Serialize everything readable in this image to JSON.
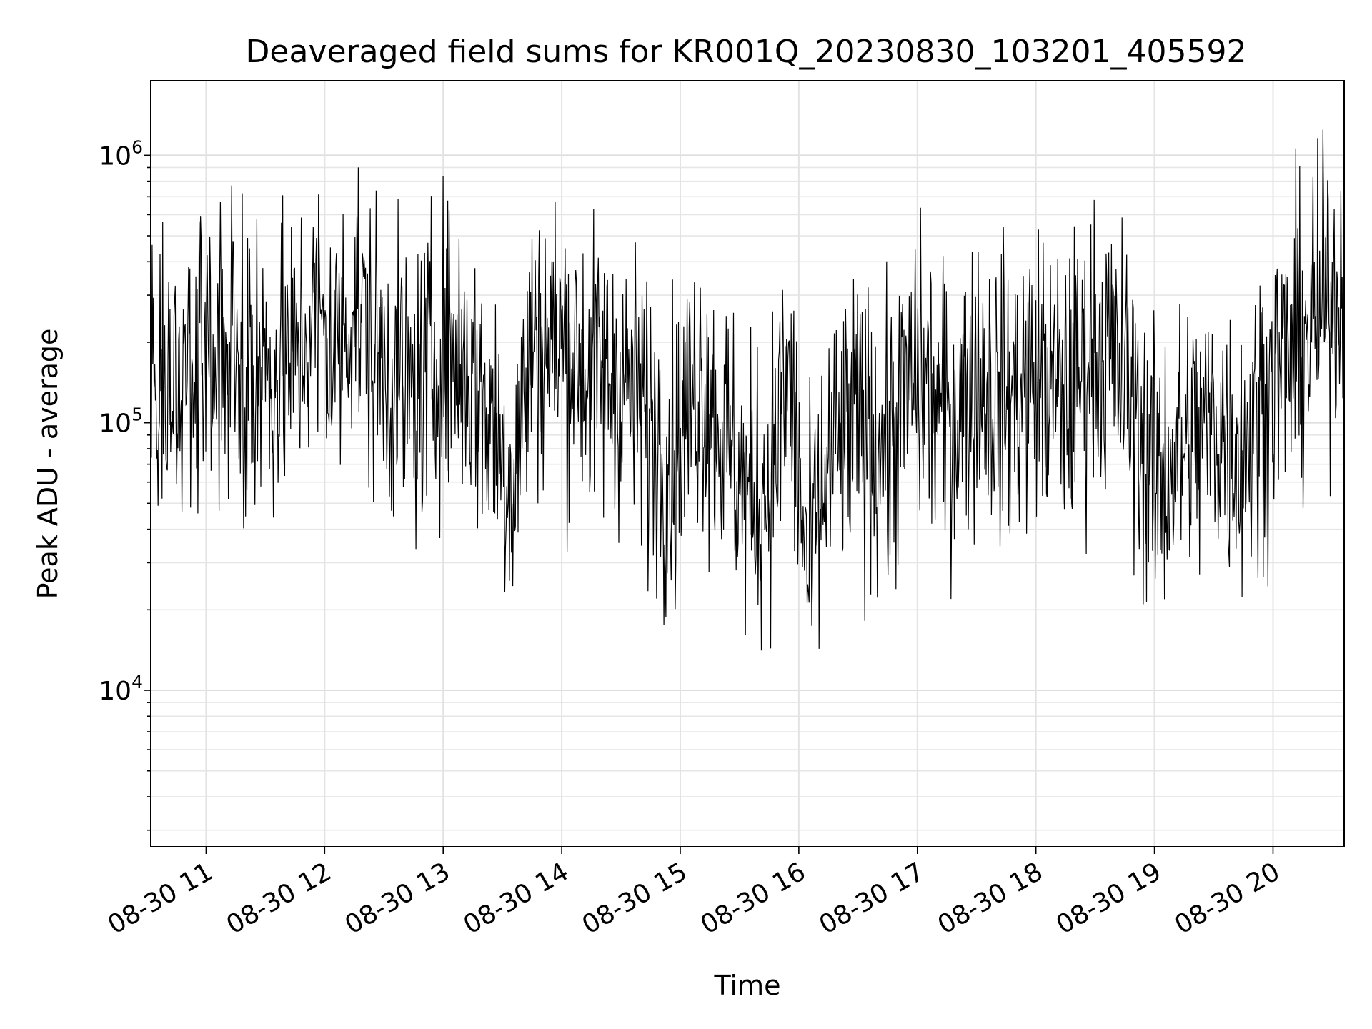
{
  "chart_data": {
    "type": "line",
    "title": "Deaveraged field sums for KR001Q_20230830_103201_405592",
    "xlabel": "Time",
    "ylabel": "Peak ADU - average",
    "yscale": "log",
    "ylim": [
      2600,
      1900000
    ],
    "xlim": [
      "2023-08-30T10:32",
      "2023-08-30T20:36"
    ],
    "grid": true,
    "line_color": "#000000",
    "x_ticks": [
      {
        "time": "2023-08-30T11:00",
        "label": "08-30 11"
      },
      {
        "time": "2023-08-30T12:00",
        "label": "08-30 12"
      },
      {
        "time": "2023-08-30T13:00",
        "label": "08-30 13"
      },
      {
        "time": "2023-08-30T14:00",
        "label": "08-30 14"
      },
      {
        "time": "2023-08-30T15:00",
        "label": "08-30 15"
      },
      {
        "time": "2023-08-30T16:00",
        "label": "08-30 16"
      },
      {
        "time": "2023-08-30T17:00",
        "label": "08-30 17"
      },
      {
        "time": "2023-08-30T18:00",
        "label": "08-30 18"
      },
      {
        "time": "2023-08-30T19:00",
        "label": "08-30 19"
      },
      {
        "time": "2023-08-30T20:00",
        "label": "08-30 20"
      }
    ],
    "y_ticks": [
      {
        "value": 10000,
        "base": "10",
        "exp": "4"
      },
      {
        "value": 100000,
        "base": "10",
        "exp": "5"
      },
      {
        "value": 1000000,
        "base": "10",
        "exp": "6"
      }
    ],
    "series": [
      {
        "x": [
          "2023-08-30T10:32",
          "2023-08-30T10:40",
          "2023-08-30T10:50",
          "2023-08-30T11:00",
          "2023-08-30T11:15",
          "2023-08-30T11:30",
          "2023-08-30T11:45",
          "2023-08-30T11:55",
          "2023-08-30T12:05",
          "2023-08-30T12:15",
          "2023-08-30T12:25",
          "2023-08-30T12:35",
          "2023-08-30T12:45",
          "2023-08-30T13:00",
          "2023-08-30T13:15",
          "2023-08-30T13:25",
          "2023-08-30T13:35",
          "2023-08-30T13:45",
          "2023-08-30T14:00",
          "2023-08-30T14:15",
          "2023-08-30T14:30",
          "2023-08-30T14:45",
          "2023-08-30T14:55",
          "2023-08-30T15:10",
          "2023-08-30T15:25",
          "2023-08-30T15:35",
          "2023-08-30T15:45",
          "2023-08-30T15:55",
          "2023-08-30T16:05",
          "2023-08-30T16:15",
          "2023-08-30T16:30",
          "2023-08-30T16:45",
          "2023-08-30T17:00",
          "2023-08-30T17:15",
          "2023-08-30T17:30",
          "2023-08-30T17:45",
          "2023-08-30T18:00",
          "2023-08-30T18:15",
          "2023-08-30T18:30",
          "2023-08-30T18:45",
          "2023-08-30T19:00",
          "2023-08-30T19:15",
          "2023-08-30T19:30",
          "2023-08-30T19:45",
          "2023-08-30T20:00",
          "2023-08-30T20:15",
          "2023-08-30T20:30",
          "2023-08-30T20:36"
        ],
        "y": [
          150000,
          120000,
          140000,
          200000,
          180000,
          150000,
          170000,
          250000,
          180000,
          300000,
          180000,
          150000,
          120000,
          200000,
          150000,
          100000,
          60000,
          200000,
          200000,
          150000,
          150000,
          100000,
          70000,
          150000,
          80000,
          50000,
          60000,
          150000,
          25000,
          70000,
          100000,
          80000,
          150000,
          100000,
          150000,
          120000,
          150000,
          120000,
          200000,
          150000,
          60000,
          80000,
          100000,
          80000,
          150000,
          200000,
          300000,
          350000
        ]
      }
    ]
  }
}
